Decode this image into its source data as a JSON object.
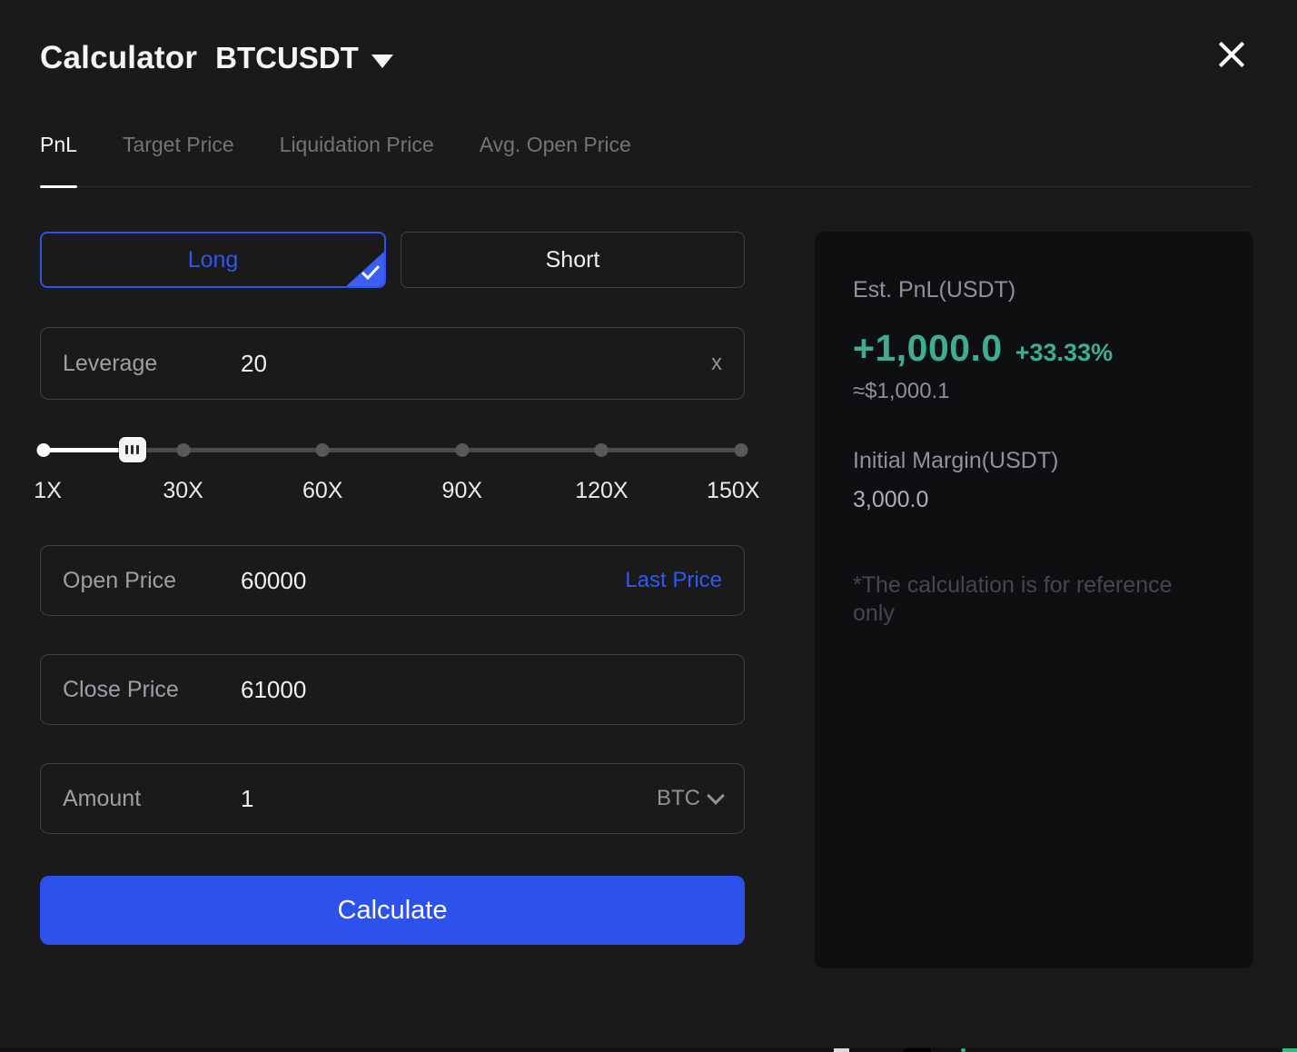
{
  "header": {
    "title": "Calculator",
    "symbol": "BTCUSDT"
  },
  "tabs": [
    {
      "label": "PnL",
      "active": true
    },
    {
      "label": "Target Price",
      "active": false
    },
    {
      "label": "Liquidation Price",
      "active": false
    },
    {
      "label": "Avg. Open Price",
      "active": false
    }
  ],
  "side_toggle": {
    "long_label": "Long",
    "short_label": "Short",
    "selected": "Long"
  },
  "leverage": {
    "label": "Leverage",
    "value": "20",
    "suffix": "x",
    "slider_marks": [
      "1X",
      "30X",
      "60X",
      "90X",
      "120X",
      "150X"
    ],
    "slider_percent": 12.75
  },
  "fields": {
    "open_price": {
      "label": "Open Price",
      "value": "60000",
      "action": "Last Price"
    },
    "close_price": {
      "label": "Close Price",
      "value": "61000"
    },
    "amount": {
      "label": "Amount",
      "value": "1",
      "unit": "BTC"
    }
  },
  "calculate_label": "Calculate",
  "results": {
    "est_pnl_label": "Est. PnL(USDT)",
    "est_pnl_value": "+1,000.0",
    "est_pnl_percent": "+33.33%",
    "approx_usd": "≈$1,000.1",
    "initial_margin_label": "Initial Margin(USDT)",
    "initial_margin_value": "3,000.0",
    "disclaimer": "*The calculation is for reference only"
  },
  "colors": {
    "accent_blue": "#2D52EC",
    "link_blue": "#2E5AF3",
    "positive_green": "#3FAE8E",
    "modal_bg": "#1A1A1B",
    "panel_bg": "#0E0F10"
  }
}
